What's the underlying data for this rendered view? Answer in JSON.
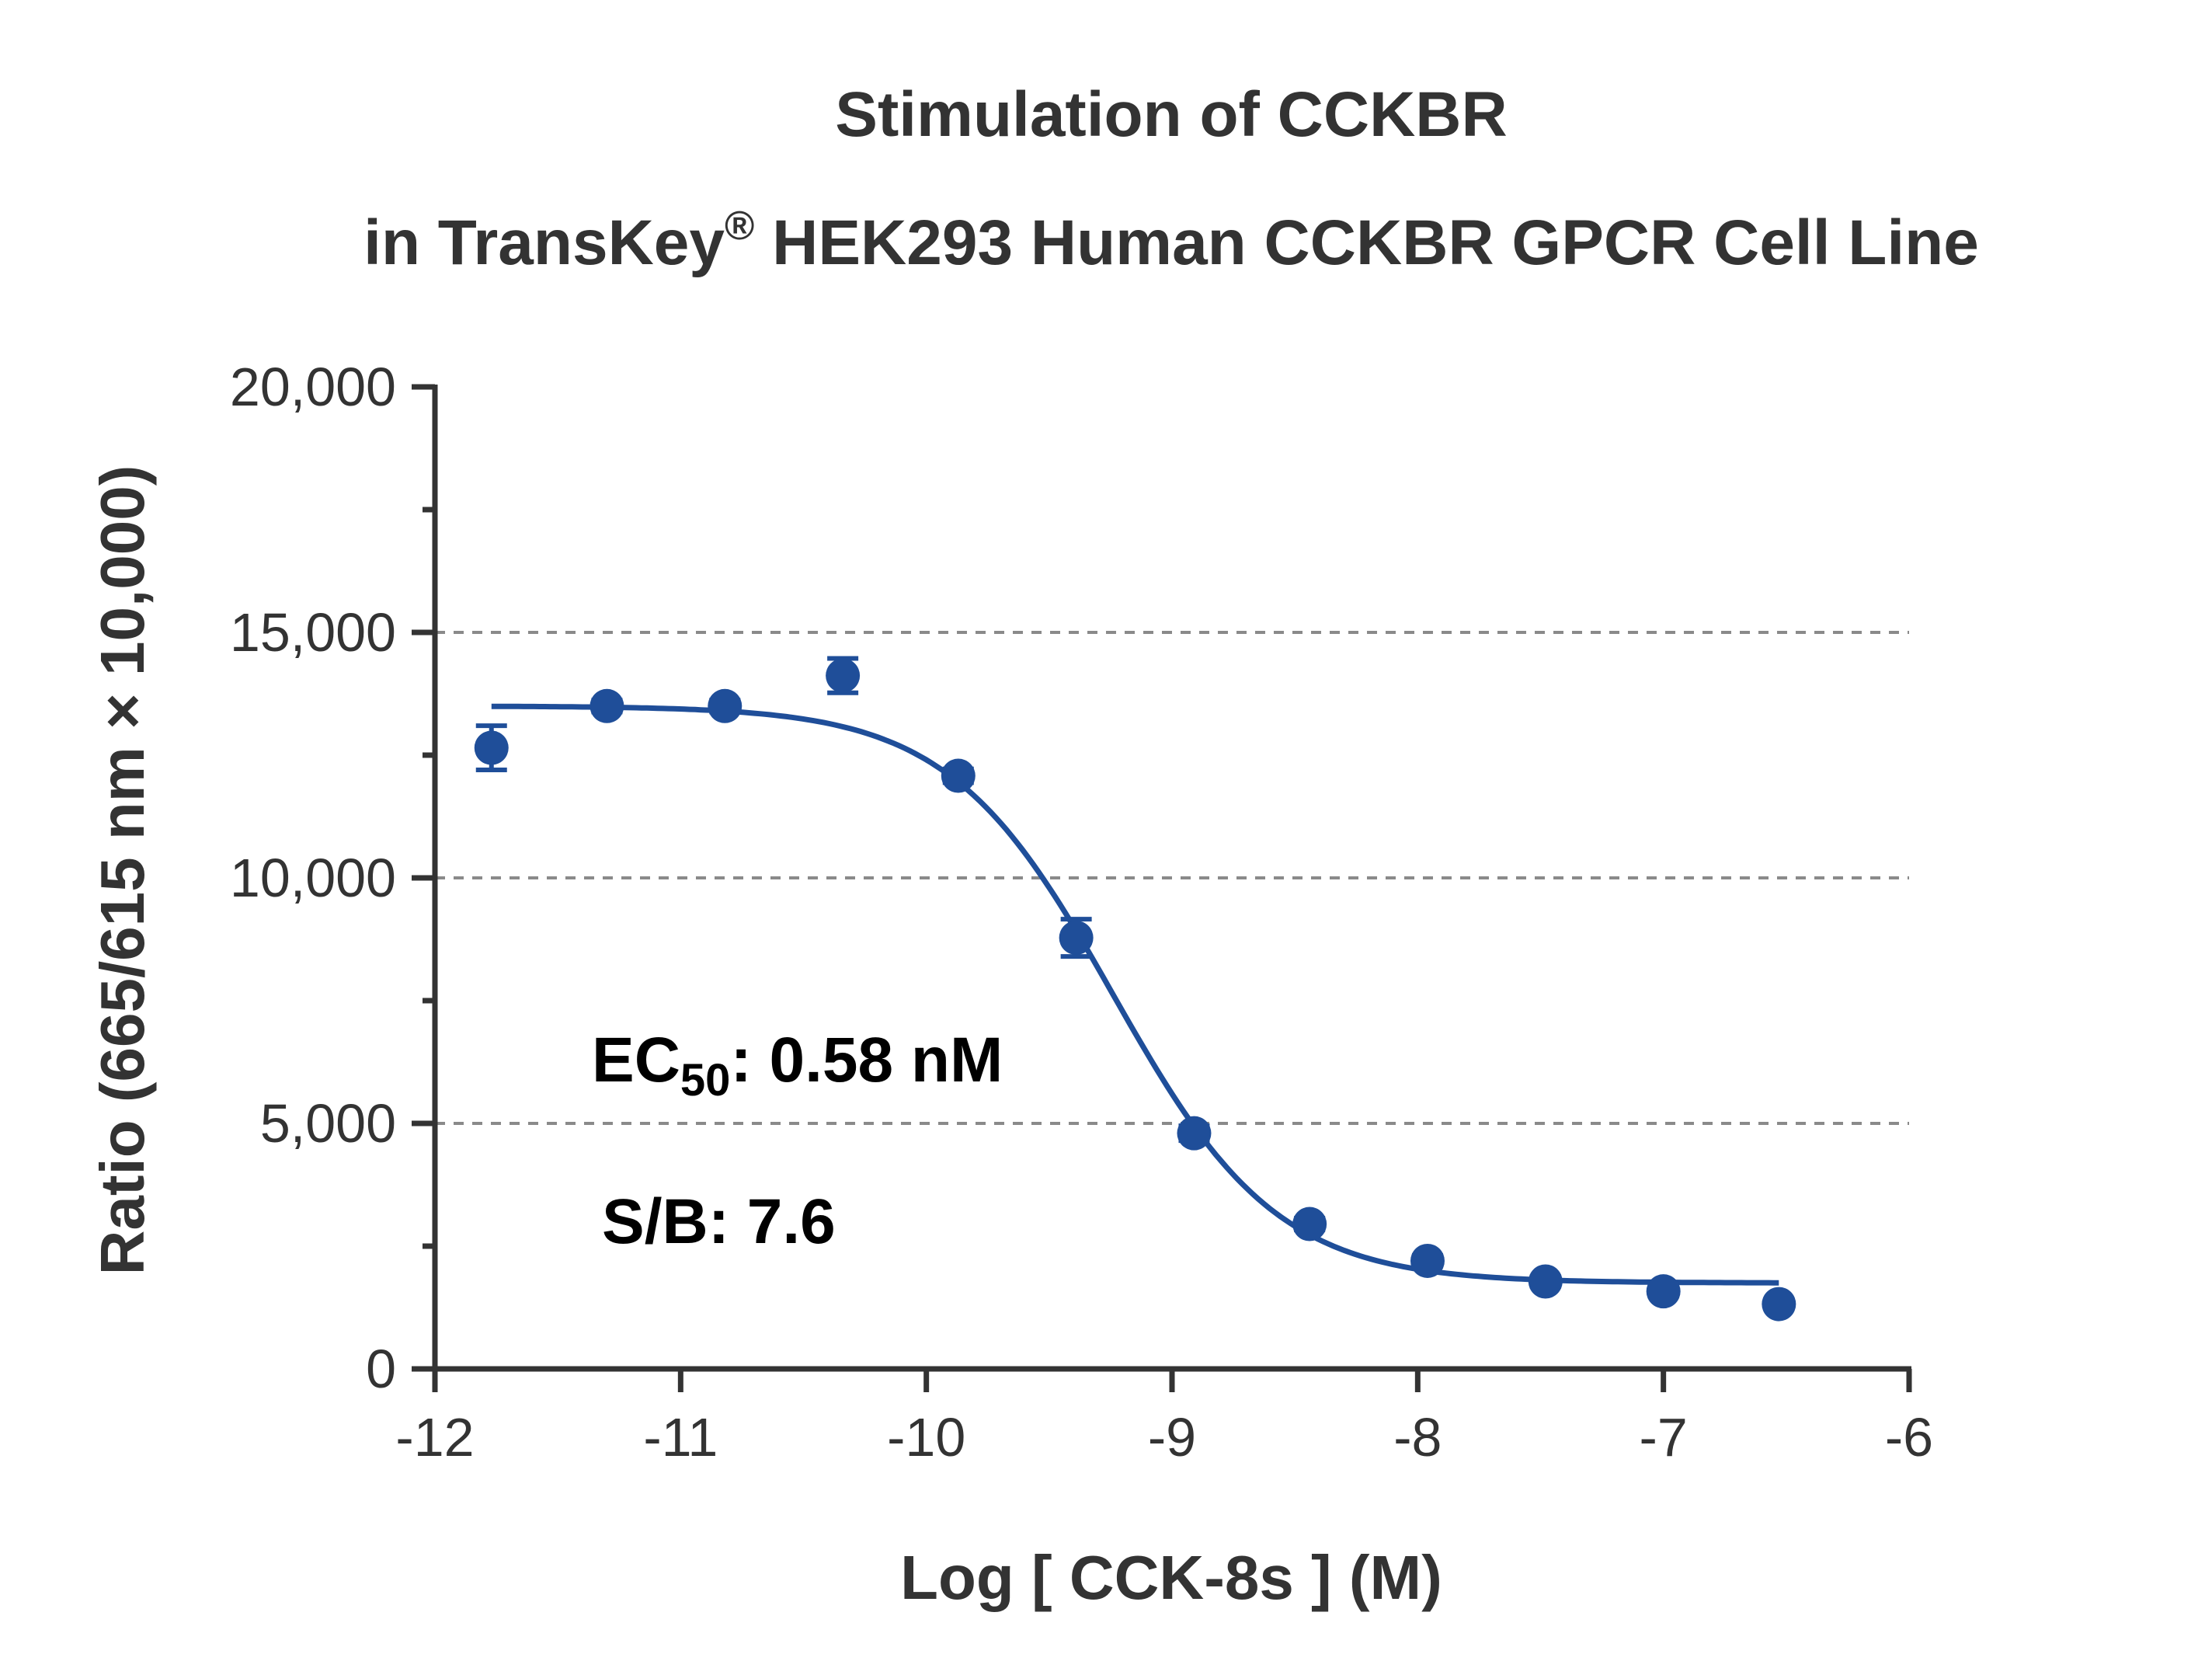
{
  "chart_data": {
    "type": "scatter",
    "title_line1": "Stimulation of  CCKBR",
    "title_line2_pre": "in TransKey",
    "title_line2_sup": "®",
    "title_line2_post": " HEK293 Human CCKBR GPCR Cell Line",
    "xlabel": "Log [ CCK-8s ]  (M)",
    "ylabel": "Ratio (665/615 nm × 10,000)",
    "xlim": [
      -12,
      -6
    ],
    "ylim": [
      0,
      20000
    ],
    "x_ticks": [
      -12,
      -11,
      -10,
      -9,
      -8,
      -7,
      -6
    ],
    "x_tick_labels": [
      "-12",
      "-11",
      "-10",
      "-9",
      "-8",
      "-7",
      "-6"
    ],
    "y_ticks": [
      0,
      5000,
      10000,
      15000,
      20000
    ],
    "y_tick_labels": [
      "0",
      "5,000",
      "10,000",
      "15,000",
      "20,000"
    ],
    "grid": "dashed horizontal at 5,000, 10,000, 15,000",
    "color": "#1f4e99",
    "series": [
      {
        "x": [
          -11.77,
          -11.3,
          -10.82,
          -10.34,
          -9.87,
          -9.39,
          -8.91,
          -8.44,
          -7.96,
          -7.48,
          -7.0,
          -6.53
        ],
        "y": [
          12650,
          13500,
          13500,
          14120,
          12080,
          8780,
          4800,
          2950,
          2200,
          1780,
          1580,
          1320
        ],
        "error": [
          450,
          120,
          120,
          350,
          140,
          380,
          150,
          120,
          110,
          100,
          100,
          90
        ]
      }
    ],
    "fit": {
      "model": "4PL",
      "top": 13500,
      "bottom": 1750,
      "log_ec50": -9.24,
      "hill": 1.3,
      "x_range": [
        -11.77,
        -6.53
      ]
    },
    "annotations": {
      "ec50_prefix": "EC",
      "ec50_sub": "50",
      "ec50_value": ": 0.58 nM",
      "sb": "S/B: 7.6"
    }
  }
}
